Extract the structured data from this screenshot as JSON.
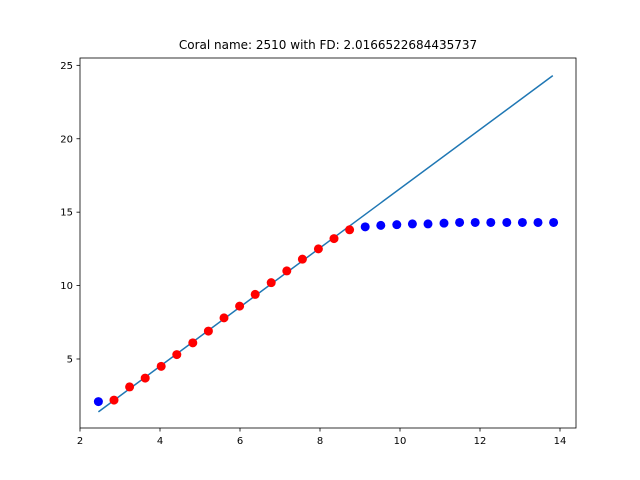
{
  "chart_data": {
    "type": "scatter",
    "title": "Coral name: 2510 with FD: 2.0166522684435737",
    "xlabel": "",
    "ylabel": "",
    "xlim": [
      2.0,
      14.4
    ],
    "ylim": [
      0.3,
      25.5
    ],
    "xticks": [
      2,
      4,
      6,
      8,
      10,
      12,
      14
    ],
    "yticks": [
      5,
      10,
      15,
      20,
      25
    ],
    "grid": false,
    "series": [
      {
        "kind": "line",
        "color": "#1f77b4",
        "x": [
          2.46,
          13.82
        ],
        "y": [
          1.4,
          24.3
        ]
      },
      {
        "kind": "scatter",
        "color": "#ff0000",
        "x": [
          2.85,
          3.24,
          3.63,
          4.03,
          4.42,
          4.82,
          5.21,
          5.6,
          5.99,
          6.38,
          6.78,
          7.17,
          7.56,
          7.96,
          8.35,
          8.74
        ],
        "y": [
          2.2,
          3.1,
          3.7,
          4.5,
          5.3,
          6.1,
          6.9,
          7.8,
          8.6,
          9.4,
          10.2,
          11.0,
          11.8,
          12.5,
          13.2,
          13.8
        ]
      },
      {
        "kind": "scatter",
        "color": "#0000ff",
        "x": [
          2.46,
          9.13,
          9.52,
          9.92,
          10.31,
          10.7,
          11.1,
          11.49,
          11.88,
          12.27,
          12.67,
          13.06,
          13.45,
          13.84
        ],
        "y": [
          2.1,
          14.0,
          14.1,
          14.15,
          14.2,
          14.2,
          14.25,
          14.3,
          14.3,
          14.3,
          14.3,
          14.3,
          14.3,
          14.3
        ]
      }
    ]
  }
}
